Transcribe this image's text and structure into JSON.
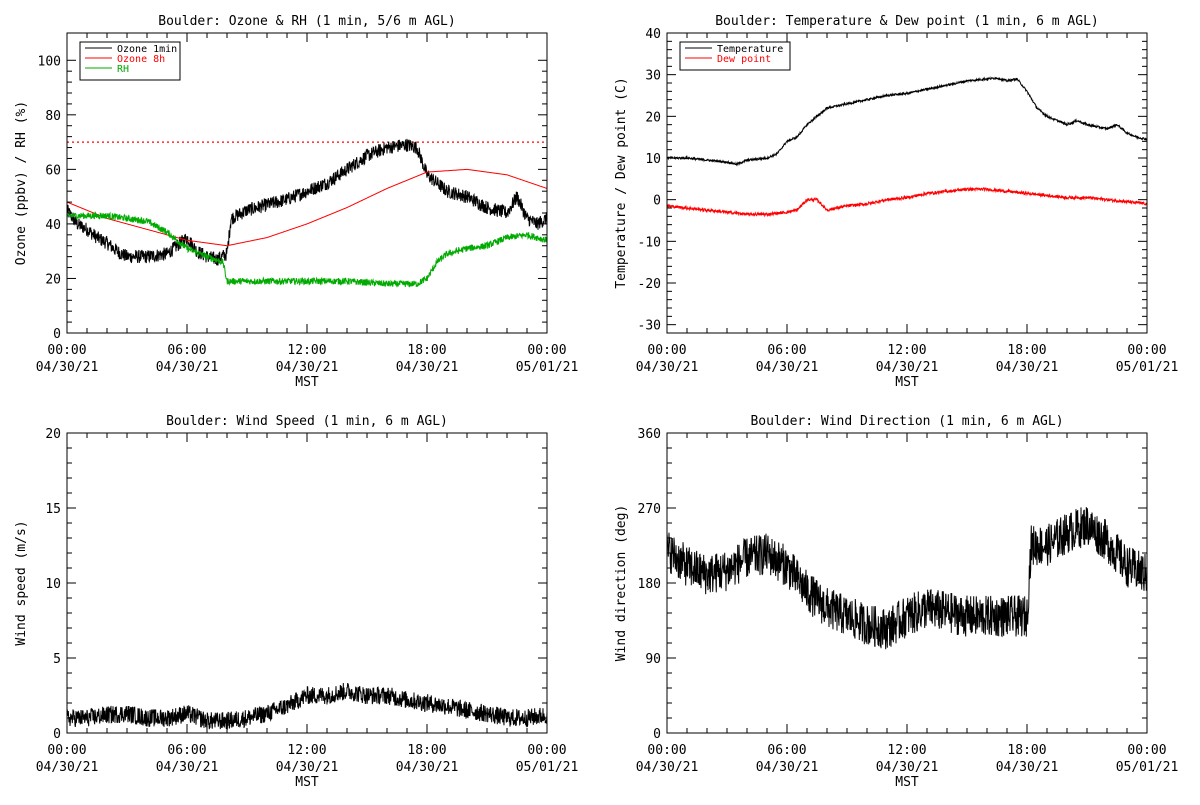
{
  "chart_data": [
    {
      "id": "ozone_rh",
      "type": "line",
      "title": "Boulder: Ozone & RH (1 min, 5/6 m AGL)",
      "xlabel": "MST",
      "ylabel": "Ozone (ppbv) / RH (%)",
      "xlim": [
        0,
        24
      ],
      "ylim": [
        0,
        110
      ],
      "y_ticks": [
        0,
        20,
        40,
        60,
        80,
        100
      ],
      "x_ticks": [
        {
          "hour": 0,
          "time": "00:00",
          "date": "04/30/21"
        },
        {
          "hour": 6,
          "time": "06:00",
          "date": "04/30/21"
        },
        {
          "hour": 12,
          "time": "12:00",
          "date": "04/30/21"
        },
        {
          "hour": 18,
          "time": "18:00",
          "date": "04/30/21"
        },
        {
          "hour": 24,
          "time": "00:00",
          "date": "05/01/21"
        }
      ],
      "legend": {
        "placement": "top-left",
        "entries": [
          {
            "label": "Ozone 1min",
            "color": "#000000"
          },
          {
            "label": "Ozone 8h",
            "color": "#ff0000"
          },
          {
            "label": "RH",
            "color": "#00aa00"
          }
        ]
      },
      "reference_line": {
        "y": 70,
        "style": "dotted",
        "color": "#ff0000"
      },
      "series": [
        {
          "name": "Ozone 1min",
          "color": "#000000",
          "noise": 2.5,
          "x": [
            0,
            0.5,
            1,
            1.5,
            2,
            2.5,
            3,
            4,
            5,
            5.5,
            6,
            6.5,
            7,
            7.5,
            8,
            8.2,
            9,
            10,
            11,
            12,
            13,
            14,
            15,
            16,
            17,
            17.5,
            18,
            18.5,
            19,
            20,
            21,
            22,
            22.5,
            23,
            23.5,
            24
          ],
          "y": [
            45,
            40,
            38,
            35,
            33,
            30,
            28,
            28,
            29,
            32,
            35,
            30,
            28,
            27,
            29,
            42,
            45,
            47,
            49,
            52,
            55,
            60,
            65,
            68,
            69,
            68,
            58,
            55,
            52,
            50,
            46,
            44,
            50,
            42,
            40,
            42
          ]
        },
        {
          "name": "Ozone 8h",
          "color": "#ff0000",
          "noise": 0,
          "x": [
            0,
            2,
            4,
            6,
            8,
            10,
            12,
            14,
            16,
            18,
            20,
            22,
            24
          ],
          "y": [
            48,
            42,
            38,
            34,
            32,
            35,
            40,
            46,
            53,
            59,
            60,
            58,
            53
          ]
        },
        {
          "name": "RH",
          "color": "#00aa00",
          "noise": 1.2,
          "x": [
            0,
            1,
            2,
            3,
            4,
            5,
            6,
            7,
            7.8,
            8,
            9,
            10,
            12,
            14,
            16,
            17.5,
            18,
            18.5,
            19,
            20,
            21,
            22,
            23,
            24
          ],
          "y": [
            43,
            43,
            43,
            42,
            41,
            37,
            31,
            28,
            26,
            19,
            19,
            19,
            19,
            19,
            18,
            18,
            20,
            26,
            29,
            31,
            32,
            35,
            36,
            34
          ]
        }
      ]
    },
    {
      "id": "temp_dew",
      "type": "line",
      "title": "Boulder: Temperature & Dew point (1 min, 6 m AGL)",
      "xlabel": "MST",
      "ylabel": "Temperature / Dew point (C)",
      "xlim": [
        0,
        24
      ],
      "ylim": [
        -32,
        40
      ],
      "y_ticks": [
        -30,
        -20,
        -10,
        0,
        10,
        20,
        30,
        40
      ],
      "x_ticks": [
        {
          "hour": 0,
          "time": "00:00",
          "date": "04/30/21"
        },
        {
          "hour": 6,
          "time": "06:00",
          "date": "04/30/21"
        },
        {
          "hour": 12,
          "time": "12:00",
          "date": "04/30/21"
        },
        {
          "hour": 18,
          "time": "18:00",
          "date": "04/30/21"
        },
        {
          "hour": 24,
          "time": "00:00",
          "date": "05/01/21"
        }
      ],
      "legend": {
        "placement": "top-left",
        "entries": [
          {
            "label": "Temperature",
            "color": "#000000"
          },
          {
            "label": "Dew point",
            "color": "#ff0000"
          }
        ]
      },
      "series": [
        {
          "name": "Temperature",
          "color": "#000000",
          "noise": 0.25,
          "x": [
            0,
            1,
            2,
            3,
            3.5,
            4,
            5,
            5.5,
            6,
            6.5,
            7,
            7.5,
            8,
            9,
            10,
            11,
            12,
            13,
            14,
            15,
            16,
            16.5,
            17,
            17.5,
            18,
            18.5,
            19,
            19.5,
            20,
            20.5,
            21,
            22,
            22.5,
            23,
            23.5,
            24
          ],
          "y": [
            10,
            10,
            9.5,
            9,
            8.5,
            9.5,
            10,
            11,
            14,
            15,
            18,
            20,
            22,
            23,
            24,
            25,
            25.5,
            26.5,
            27.5,
            28.5,
            29,
            29.2,
            28.5,
            29,
            26,
            22,
            20,
            19,
            18,
            19,
            18,
            17,
            18,
            16,
            15,
            14.5
          ]
        },
        {
          "name": "Dew point",
          "color": "#ff0000",
          "noise": 0.35,
          "x": [
            0,
            1,
            2,
            3,
            4,
            5,
            6,
            6.5,
            7,
            7.5,
            8,
            9,
            10,
            11,
            12,
            13,
            14,
            15,
            16,
            17,
            18,
            19,
            20,
            21,
            22,
            23,
            24
          ],
          "y": [
            -1.5,
            -2,
            -2.5,
            -3,
            -3.5,
            -3.5,
            -3,
            -2.5,
            0,
            0,
            -2.5,
            -1.5,
            -1,
            0,
            0.5,
            1.5,
            2,
            2.5,
            2.5,
            2,
            1.5,
            1,
            0.5,
            0.5,
            0,
            -0.5,
            -1
          ]
        }
      ]
    },
    {
      "id": "wind_speed",
      "type": "line",
      "title": "Boulder: Wind Speed (1 min, 6 m AGL)",
      "xlabel": "MST",
      "ylabel": "Wind speed (m/s)",
      "xlim": [
        0,
        24
      ],
      "ylim": [
        0,
        20
      ],
      "y_ticks": [
        0,
        5,
        10,
        15,
        20
      ],
      "x_ticks": [
        {
          "hour": 0,
          "time": "00:00",
          "date": "04/30/21"
        },
        {
          "hour": 6,
          "time": "06:00",
          "date": "04/30/21"
        },
        {
          "hour": 12,
          "time": "12:00",
          "date": "04/30/21"
        },
        {
          "hour": 18,
          "time": "18:00",
          "date": "04/30/21"
        },
        {
          "hour": 24,
          "time": "00:00",
          "date": "05/01/21"
        }
      ],
      "series": [
        {
          "name": "Wind speed",
          "color": "#000000",
          "noise": 0.6,
          "floor": 0,
          "x": [
            0,
            1,
            2,
            3,
            4,
            5,
            6,
            7,
            8,
            9,
            10,
            11,
            12,
            13,
            14,
            15,
            16,
            17,
            18,
            19,
            20,
            21,
            22,
            23,
            24
          ],
          "y": [
            1,
            1,
            1.2,
            1.3,
            1,
            1,
            1.3,
            0.8,
            0.8,
            1,
            1.3,
            1.8,
            2.5,
            2.5,
            2.8,
            2.5,
            2.5,
            2.2,
            2.0,
            1.8,
            1.5,
            1.3,
            1.0,
            1.0,
            1.2
          ]
        }
      ]
    },
    {
      "id": "wind_dir",
      "type": "line",
      "title": "Boulder: Wind Direction (1 min, 6 m AGL)",
      "xlabel": "MST",
      "ylabel": "Wind direction (deg)",
      "xlim": [
        0,
        24
      ],
      "ylim": [
        0,
        360
      ],
      "y_ticks": [
        0,
        90,
        180,
        270,
        360
      ],
      "x_ticks": [
        {
          "hour": 0,
          "time": "00:00",
          "date": "04/30/21"
        },
        {
          "hour": 6,
          "time": "06:00",
          "date": "04/30/21"
        },
        {
          "hour": 12,
          "time": "12:00",
          "date": "04/30/21"
        },
        {
          "hour": 18,
          "time": "18:00",
          "date": "04/30/21"
        },
        {
          "hour": 24,
          "time": "00:00",
          "date": "05/01/21"
        }
      ],
      "series": [
        {
          "name": "Wind direction",
          "color": "#000000",
          "noise": 25,
          "floor": 0,
          "ceil": 360,
          "x": [
            0,
            1,
            2,
            3,
            4,
            5,
            6,
            7,
            8,
            9,
            10,
            11,
            12,
            13,
            14,
            15,
            16,
            17,
            18,
            18.2,
            19,
            20,
            21,
            22,
            23,
            24
          ],
          "y": [
            220,
            200,
            190,
            195,
            210,
            215,
            200,
            170,
            150,
            140,
            130,
            125,
            140,
            150,
            145,
            140,
            140,
            140,
            140,
            225,
            225,
            240,
            250,
            230,
            200,
            190
          ]
        }
      ]
    }
  ]
}
